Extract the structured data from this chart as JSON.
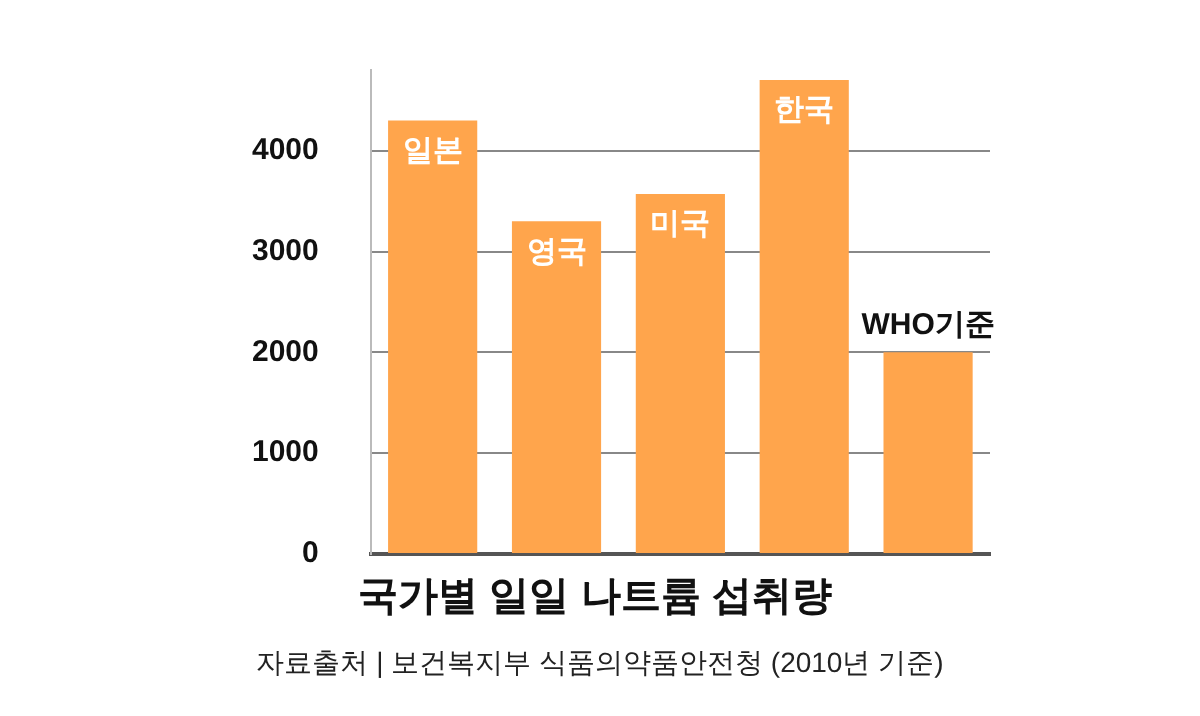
{
  "chart_data": {
    "type": "bar",
    "title": "국가별 일일 나트륨 섭취량",
    "categories": [
      "일본",
      "영국",
      "미국",
      "한국",
      "WHO기준"
    ],
    "values": [
      4300,
      3300,
      3570,
      4700,
      2000
    ],
    "color": "#ffa54c",
    "ylim": [
      0,
      4800
    ],
    "yticks": [
      0,
      1000,
      2000,
      3000,
      4000
    ],
    "grid": "y",
    "legend": false,
    "annotations": [
      "자료출처 | 보건복지부 식품의약품안전청 (2010년 기준)"
    ]
  }
}
